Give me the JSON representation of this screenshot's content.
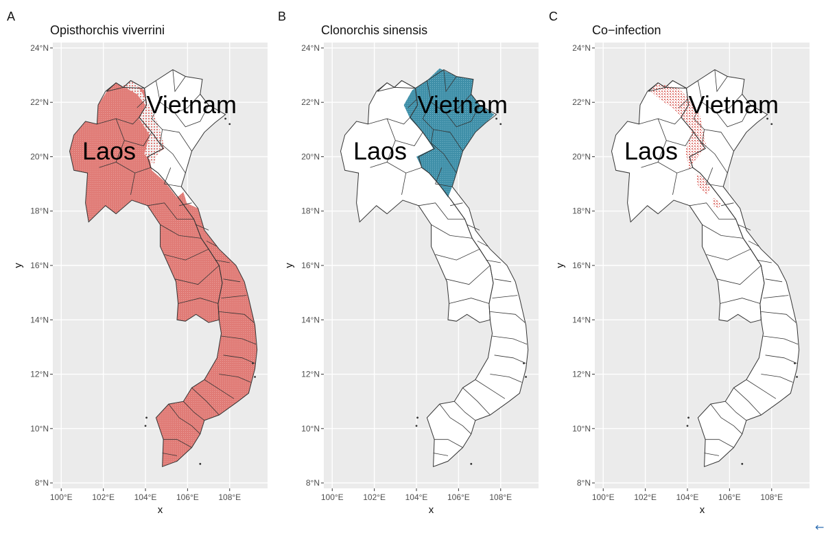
{
  "figure": {
    "panels": [
      {
        "letter": "A",
        "title": "Opisthorchis viverrini",
        "fill_color": "#e07b76",
        "highlight": "ov",
        "labels": {
          "laos": "Laos",
          "vietnam": "Vietnam"
        }
      },
      {
        "letter": "B",
        "title": "Clonorchis sinensis",
        "fill_color": "#3f8fa8",
        "highlight": "cs",
        "labels": {
          "laos": "Laos",
          "vietnam": "Vietnam"
        }
      },
      {
        "letter": "C",
        "title": "Co−infection",
        "fill_color": "#e07b76",
        "highlight": "co",
        "labels": {
          "laos": "Laos",
          "vietnam": "Vietnam"
        }
      }
    ],
    "axes": {
      "xlabel": "x",
      "ylabel": "y",
      "x_ticks": [
        "100°E",
        "102°E",
        "104°E",
        "106°E",
        "108°E"
      ],
      "y_ticks": [
        "24°N",
        "22°N",
        "20°N",
        "18°N",
        "16°N",
        "14°N",
        "12°N",
        "10°N",
        "8°N"
      ],
      "x_values": [
        100,
        102,
        104,
        106,
        108
      ],
      "y_values": [
        24,
        22,
        20,
        18,
        16,
        14,
        12,
        10,
        8
      ],
      "xlim": [
        99.6,
        109.8
      ],
      "ylim": [
        7.8,
        24.2
      ]
    },
    "colors": {
      "panel_background": "#ebebeb",
      "grid": "#ffffff",
      "border": "#333333",
      "ov_fill": "#e07b76",
      "cs_fill": "#3f8fa8",
      "co_fill": "#e07b76"
    },
    "cursor_icon": "back-arrow-icon",
    "cursor_glyph": "←"
  }
}
